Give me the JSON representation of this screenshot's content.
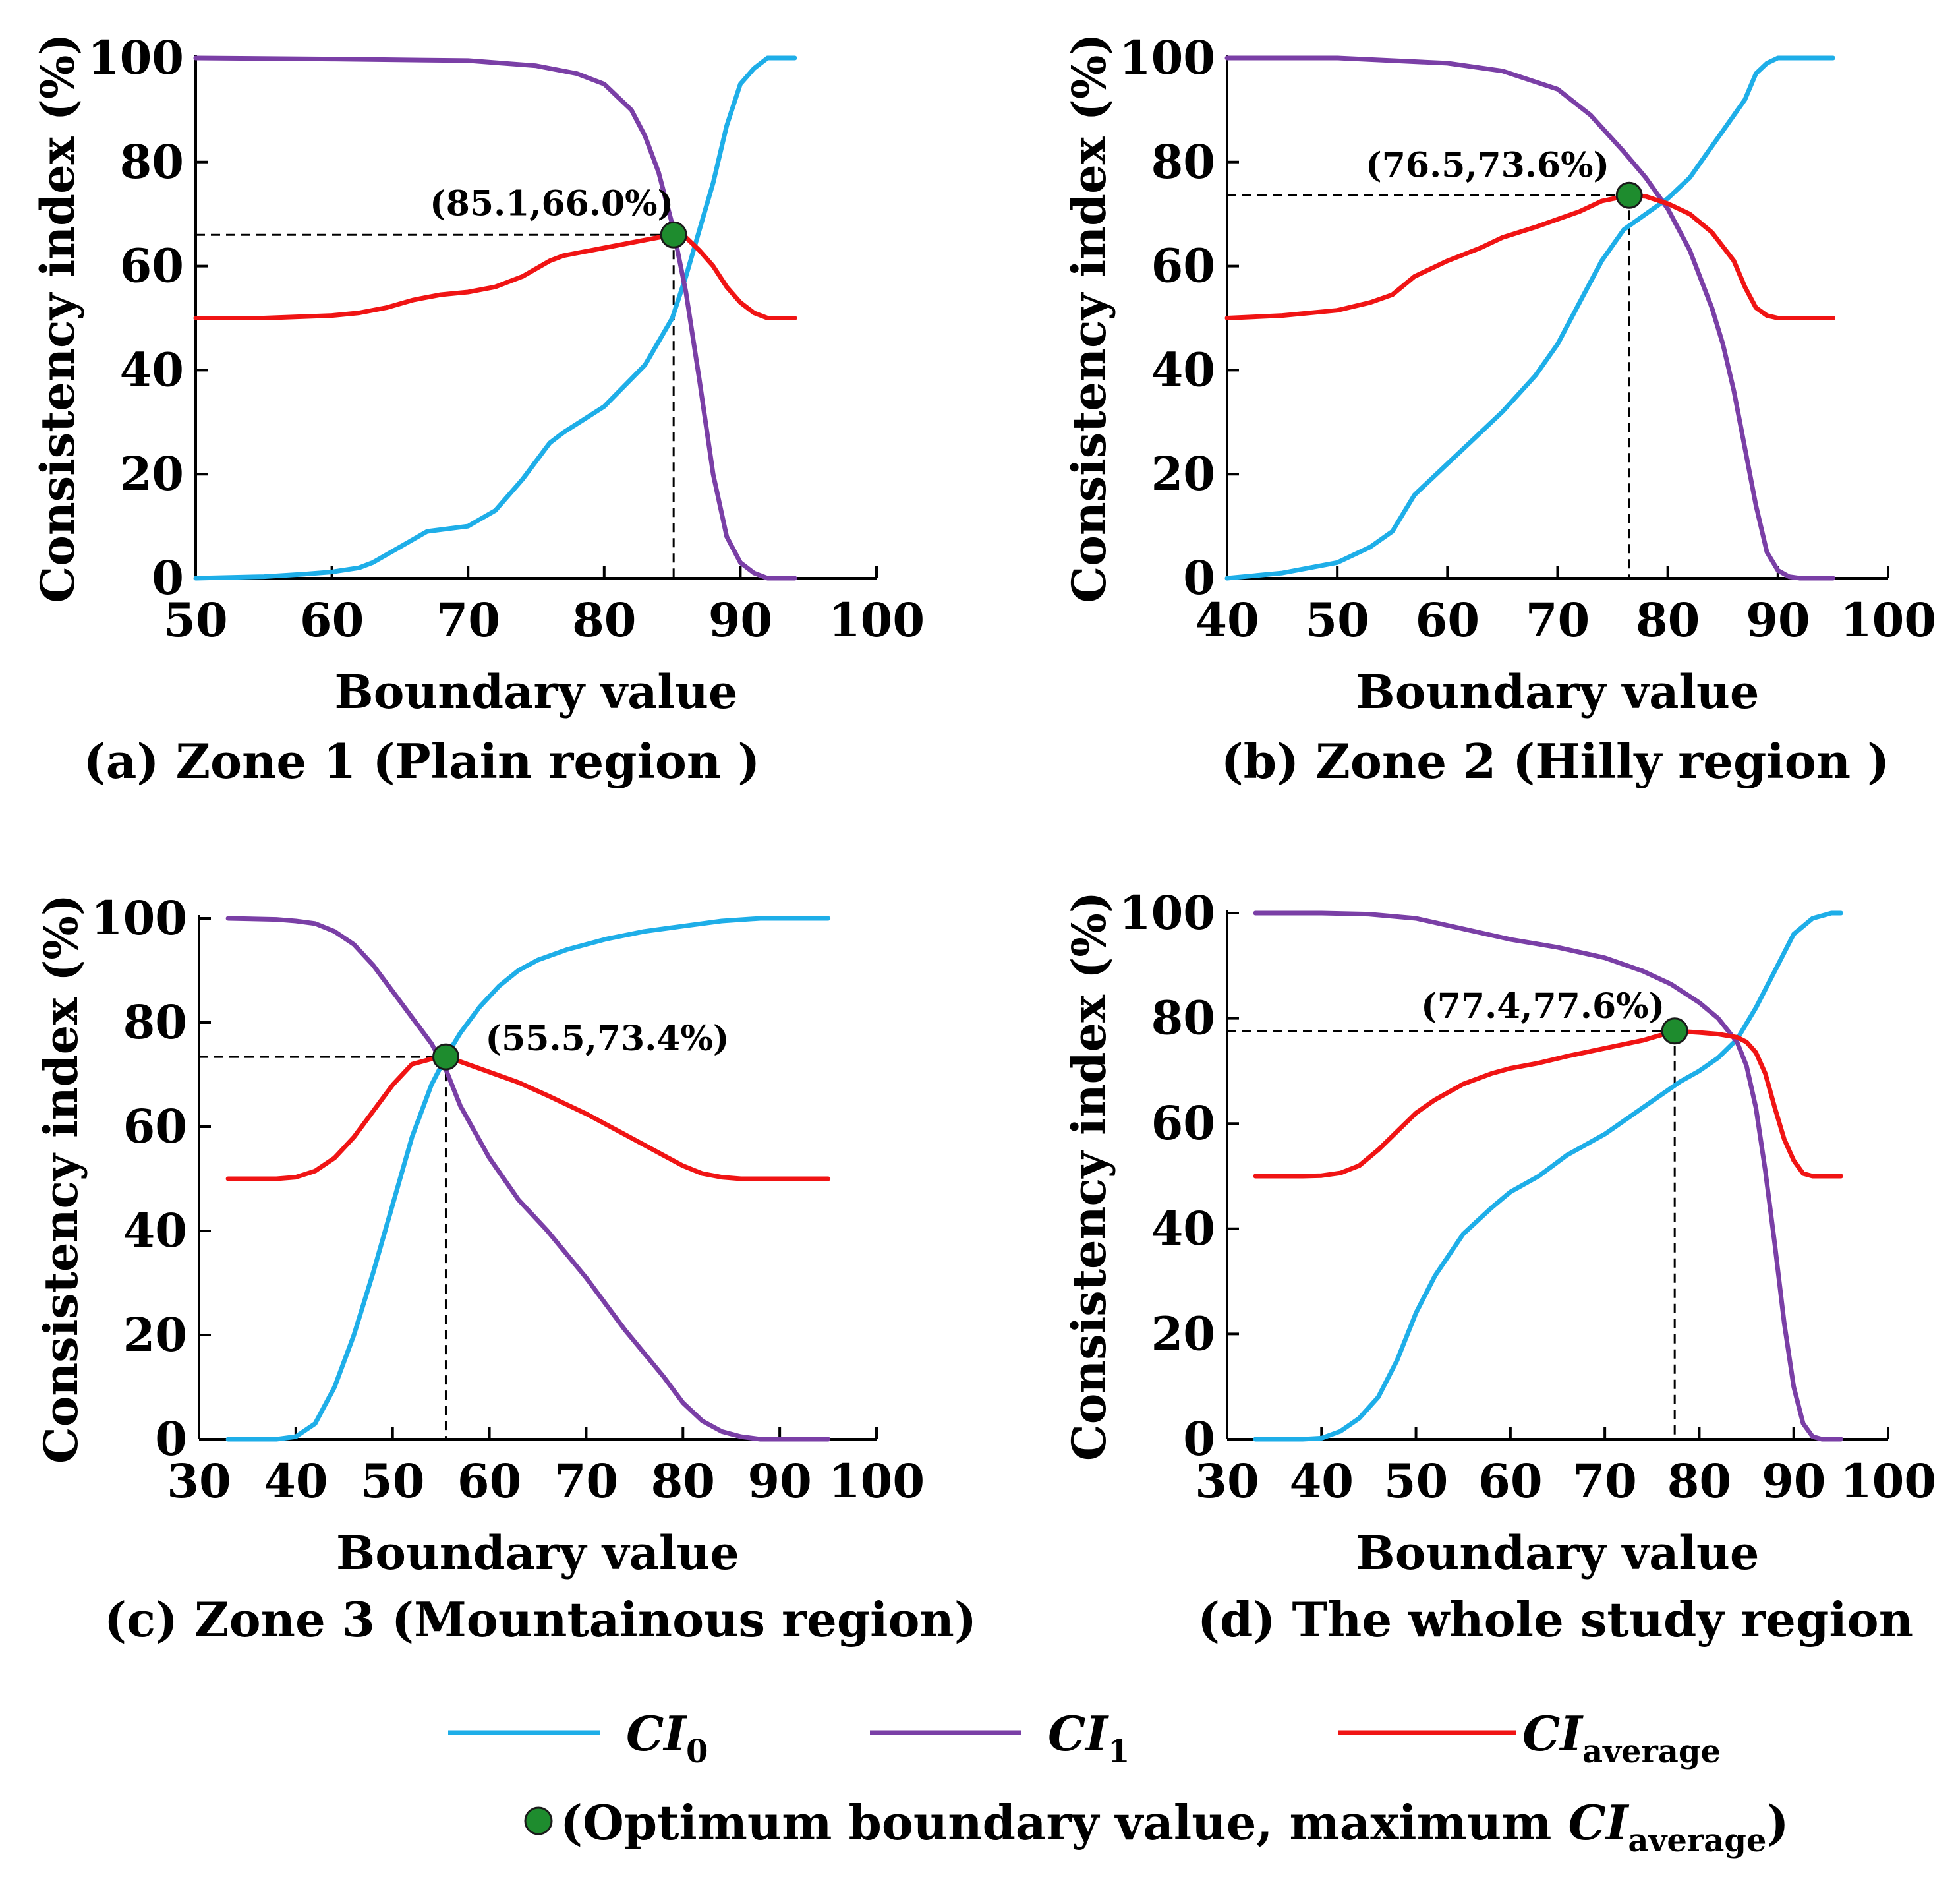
{
  "colors": {
    "ci0": "#1EAEE8",
    "ci1": "#7A3FA6",
    "ci_average": "#F01414",
    "optimum_marker": "#1E8C2E"
  },
  "chart_data": [
    {
      "type": "line",
      "caption": "(a) Zone 1 (Plain region )",
      "xlabel": "Boundary value",
      "ylabel": "Consistency index (%)",
      "xlim": [
        50,
        100
      ],
      "ylim": [
        0,
        100
      ],
      "xticks": [
        "50",
        "60",
        "70",
        "80",
        "90",
        "100"
      ],
      "yticks": [
        "0",
        "20",
        "40",
        "60",
        "80",
        "100"
      ],
      "optimum": {
        "x": 85.1,
        "y": 66.0,
        "label": "(85.1,66.0%)"
      },
      "series": [
        {
          "key": "ci0",
          "x": [
            50,
            55,
            58,
            60,
            62,
            63,
            65,
            67,
            70,
            72,
            74,
            76,
            77,
            80,
            83,
            85,
            86,
            87,
            88,
            89,
            90,
            91,
            92,
            93,
            94
          ],
          "y": [
            0,
            0.3,
            0.8,
            1.2,
            2,
            3,
            6,
            9,
            10,
            13,
            19,
            26,
            28,
            33,
            41,
            50,
            58,
            67,
            76,
            87,
            95,
            98,
            100,
            100,
            100
          ]
        },
        {
          "key": "ci1",
          "x": [
            50,
            60,
            70,
            75,
            78,
            80,
            82,
            83,
            84,
            85,
            86,
            87,
            88,
            89,
            90,
            91,
            92,
            93,
            94
          ],
          "y": [
            100,
            99.8,
            99.5,
            98.5,
            97,
            95,
            90,
            85,
            78,
            68,
            55,
            38,
            20,
            8,
            3,
            1,
            0,
            0,
            0
          ]
        },
        {
          "key": "ci_average",
          "x": [
            50,
            55,
            60,
            62,
            64,
            66,
            68,
            70,
            72,
            74,
            76,
            77,
            80,
            83,
            84,
            85.1,
            86,
            87,
            88,
            89,
            90,
            91,
            92,
            93,
            94
          ],
          "y": [
            50,
            50,
            50.5,
            51,
            52,
            53.5,
            54.5,
            55,
            56,
            58,
            61,
            62,
            63.5,
            65,
            65.5,
            66,
            65.5,
            63,
            60,
            56,
            53,
            51,
            50,
            50,
            50
          ]
        }
      ]
    },
    {
      "type": "line",
      "caption": "(b) Zone 2 (Hilly region )",
      "xlabel": "Boundary value",
      "ylabel": "Consistency index (%)",
      "xlim": [
        40,
        100
      ],
      "ylim": [
        0,
        100
      ],
      "xticks": [
        "40",
        "50",
        "60",
        "70",
        "80",
        "90",
        "100"
      ],
      "yticks": [
        "0",
        "20",
        "40",
        "60",
        "80",
        "100"
      ],
      "optimum": {
        "x": 76.5,
        "y": 73.6,
        "label": "(76.5,73.6%)"
      },
      "series": [
        {
          "key": "ci0",
          "x": [
            40,
            45,
            50,
            53,
            55,
            57,
            60,
            62,
            65,
            68,
            70,
            72,
            74,
            76,
            78,
            80,
            82,
            84,
            86,
            87,
            88,
            89,
            90,
            92,
            95
          ],
          "y": [
            0,
            1,
            3,
            6,
            9,
            16,
            22,
            26,
            32,
            39,
            45,
            53,
            61,
            67,
            70,
            73,
            77,
            83,
            89,
            92,
            97,
            99,
            100,
            100,
            100
          ]
        },
        {
          "key": "ci1",
          "x": [
            40,
            50,
            60,
            65,
            70,
            73,
            76,
            78,
            80,
            82,
            84,
            85,
            86,
            87,
            88,
            89,
            90,
            91,
            92,
            93,
            95
          ],
          "y": [
            100,
            100,
            99,
            97.5,
            94,
            89,
            82,
            77,
            71,
            63,
            52,
            45,
            36,
            25,
            14,
            5,
            1.5,
            0.3,
            0,
            0,
            0
          ]
        },
        {
          "key": "ci_average",
          "x": [
            40,
            45,
            50,
            53,
            55,
            57,
            60,
            63,
            65,
            68,
            70,
            72,
            74,
            76.5,
            78,
            80,
            82,
            84,
            86,
            87,
            88,
            89,
            90,
            92,
            95
          ],
          "y": [
            50,
            50.5,
            51.5,
            53,
            54.5,
            58,
            61,
            63.5,
            65.5,
            67.5,
            69,
            70.5,
            72.5,
            73.6,
            73.4,
            72,
            70,
            66.5,
            61,
            56,
            52,
            50.5,
            50,
            50,
            50
          ]
        }
      ]
    },
    {
      "type": "line",
      "caption": "(c) Zone 3 (Mountainous region)",
      "xlabel": "Boundary value",
      "ylabel": "Consistency index (%)",
      "xlim": [
        30,
        100
      ],
      "ylim": [
        0,
        100
      ],
      "xticks": [
        "30",
        "40",
        "50",
        "60",
        "70",
        "80",
        "90",
        "100"
      ],
      "yticks": [
        "0",
        "20",
        "40",
        "60",
        "80",
        "100"
      ],
      "optimum": {
        "x": 55.5,
        "y": 73.4,
        "label": "(55.5,73.4%)"
      },
      "series": [
        {
          "key": "ci0",
          "x": [
            33,
            38,
            40,
            42,
            44,
            46,
            48,
            50,
            52,
            54,
            55.5,
            57,
            59,
            61,
            63,
            65,
            68,
            72,
            76,
            80,
            84,
            88,
            92,
            95
          ],
          "y": [
            0,
            0,
            0.5,
            3,
            10,
            20,
            32,
            45,
            58,
            68,
            73.4,
            78,
            83,
            87,
            90,
            92,
            94,
            96,
            97.5,
            98.5,
            99.5,
            100,
            100,
            100
          ]
        },
        {
          "key": "ci1",
          "x": [
            33,
            38,
            40,
            42,
            44,
            46,
            48,
            50,
            52,
            54,
            55.5,
            57,
            60,
            63,
            66,
            70,
            74,
            78,
            80,
            82,
            84,
            86,
            88,
            90,
            95
          ],
          "y": [
            100,
            99.8,
            99.5,
            99,
            97.5,
            95,
            91,
            86,
            81,
            76,
            71,
            64,
            54,
            46,
            40,
            31,
            21,
            12,
            7,
            3.5,
            1.5,
            0.5,
            0,
            0,
            0
          ]
        },
        {
          "key": "ci_average",
          "x": [
            33,
            38,
            40,
            42,
            44,
            46,
            48,
            50,
            52,
            54,
            55.5,
            57,
            60,
            63,
            66,
            70,
            74,
            78,
            80,
            82,
            84,
            86,
            88,
            90,
            95
          ],
          "y": [
            50,
            50,
            50.3,
            51.5,
            54,
            58,
            63,
            68,
            72,
            73,
            73.4,
            72.5,
            70.5,
            68.5,
            66,
            62.5,
            58.5,
            54.5,
            52.5,
            51,
            50.3,
            50,
            50,
            50,
            50
          ]
        }
      ]
    },
    {
      "type": "line",
      "caption": "(d) The whole study region",
      "xlabel": "Boundary value",
      "ylabel": "Consistency index (%)",
      "xlim": [
        30,
        100
      ],
      "ylim": [
        0,
        100
      ],
      "xticks": [
        "30",
        "40",
        "50",
        "60",
        "70",
        "80",
        "90",
        "100"
      ],
      "yticks": [
        "0",
        "20",
        "40",
        "60",
        "80",
        "100"
      ],
      "optimum": {
        "x": 77.4,
        "y": 77.6,
        "label": "(77.4,77.6%)"
      },
      "series": [
        {
          "key": "ci0",
          "x": [
            33,
            38,
            40,
            42,
            44,
            46,
            48,
            50,
            52,
            55,
            58,
            60,
            63,
            66,
            70,
            74,
            78,
            80,
            82,
            84,
            86,
            88,
            90,
            92,
            94,
            95
          ],
          "y": [
            0,
            0,
            0.2,
            1.5,
            4,
            8,
            15,
            24,
            31,
            39,
            44,
            47,
            50,
            54,
            58,
            63,
            68,
            70,
            72.5,
            76,
            82,
            89,
            96,
            99,
            100,
            100
          ]
        },
        {
          "key": "ci1",
          "x": [
            33,
            40,
            45,
            50,
            55,
            60,
            65,
            70,
            74,
            77,
            80,
            82,
            84,
            85,
            86,
            87,
            88,
            89,
            90,
            91,
            92,
            93,
            95
          ],
          "y": [
            100,
            100,
            99.8,
            99,
            97,
            95,
            93.5,
            91.5,
            89,
            86.5,
            83,
            80,
            75.5,
            71,
            63,
            51,
            37,
            22,
            10,
            3,
            0.5,
            0,
            0
          ]
        },
        {
          "key": "ci_average",
          "x": [
            33,
            38,
            40,
            42,
            44,
            46,
            48,
            50,
            52,
            55,
            58,
            60,
            63,
            66,
            70,
            74,
            77.4,
            80,
            82,
            84,
            85,
            86,
            87,
            88,
            89,
            90,
            91,
            92,
            95
          ],
          "y": [
            50,
            50,
            50.1,
            50.6,
            52,
            55,
            58.5,
            62,
            64.5,
            67.5,
            69.5,
            70.5,
            71.5,
            72.8,
            74.3,
            75.8,
            77.6,
            77.3,
            77,
            76.4,
            75.5,
            73.5,
            69.5,
            63,
            57,
            53,
            50.5,
            50,
            50
          ]
        }
      ]
    }
  ],
  "legend": {
    "ci0": {
      "main": "CI",
      "sub": "0"
    },
    "ci1": {
      "main": "CI",
      "sub": "1"
    },
    "ci_average": {
      "main": "CI",
      "sub": "average"
    },
    "optimum_prefix": "(Optimum boundary value, maximum ",
    "optimum_main": "CI",
    "optimum_sub": "average",
    "optimum_suffix": ")"
  }
}
